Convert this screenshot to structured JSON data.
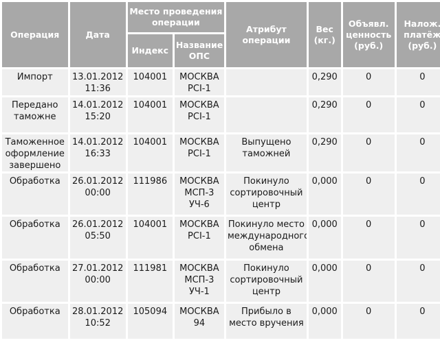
{
  "headers": {
    "operation": "Операция",
    "date": "Дата",
    "place": "Место проведения операции",
    "index": "Индекс",
    "office_name": "Название ОПС",
    "attribute": "Атрибут операции",
    "weight": "Вес (кг.)",
    "declared_value": "Объявл. ценность (руб.)",
    "cod": "Налож. платёж (руб.)"
  },
  "rows": [
    {
      "operation": "Импорт",
      "date": "13.01.2012 11:36",
      "index": "104001",
      "office": "МОСКВА PCI-1",
      "attribute": "",
      "weight": "0,290",
      "declared_value": "0",
      "cod": "0"
    },
    {
      "operation": "Передано таможне",
      "date": "14.01.2012 15:20",
      "index": "104001",
      "office": "МОСКВА PCI-1",
      "attribute": "",
      "weight": "0,290",
      "declared_value": "0",
      "cod": "0"
    },
    {
      "operation": "Таможенное оформление завершено",
      "date": "14.01.2012 16:33",
      "index": "104001",
      "office": "МОСКВА PCI-1",
      "attribute": "Выпущено таможней",
      "weight": "0,290",
      "declared_value": "0",
      "cod": "0"
    },
    {
      "operation": "Обработка",
      "date": "26.01.2012 00:00",
      "index": "111986",
      "office": "МОСКВА МСП-3 УЧ-6",
      "attribute": "Покинуло сортировочный центр",
      "weight": "0,000",
      "declared_value": "0",
      "cod": "0"
    },
    {
      "operation": "Обработка",
      "date": "26.01.2012 05:50",
      "index": "104001",
      "office": "МОСКВА PCI-1",
      "attribute": "Покинуло место международного обмена",
      "weight": "0,000",
      "declared_value": "0",
      "cod": "0"
    },
    {
      "operation": "Обработка",
      "date": "27.01.2012 00:00",
      "index": "111981",
      "office": "МОСКВА МСП-3 УЧ-1",
      "attribute": "Покинуло сортировочный центр",
      "weight": "0,000",
      "declared_value": "0",
      "cod": "0"
    },
    {
      "operation": "Обработка",
      "date": "28.01.2012 10:52",
      "index": "105094",
      "office": "МОСКВА 94",
      "attribute": "Прибыло в место вручения",
      "weight": "0,000",
      "declared_value": "0",
      "cod": "0"
    }
  ]
}
